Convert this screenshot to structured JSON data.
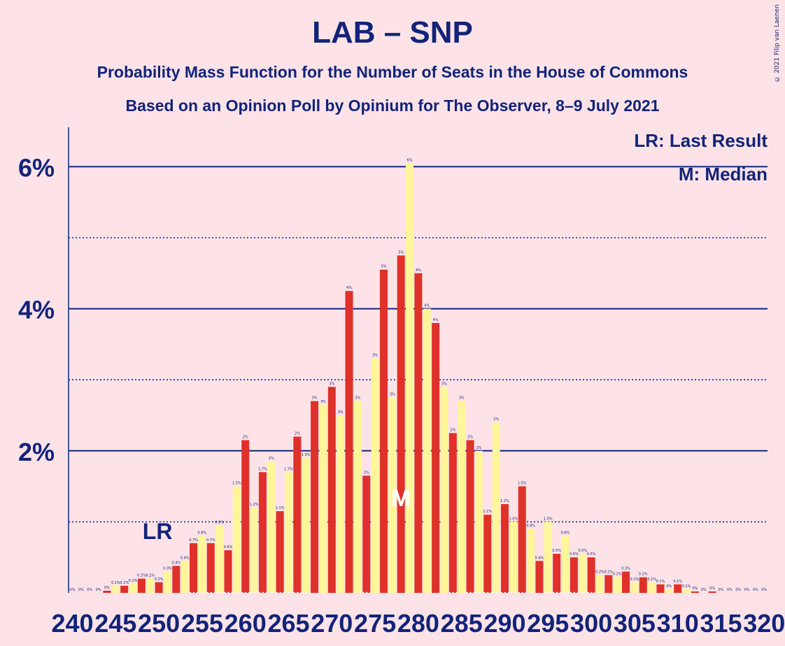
{
  "header": {
    "title": "LAB – SNP",
    "subtitle": "Probability Mass Function for the Number of Seats in the House of Commons",
    "subtitle2": "Based on an Opinion Poll by Opinium for The Observer, 8–9 July 2021",
    "copyright": "© 2021 Filip van Laenen"
  },
  "legend": {
    "last_result": "LR: Last Result",
    "median": "M: Median"
  },
  "markers": {
    "last_result_label": "LR",
    "last_result_seat": 250,
    "median_label": "M",
    "median_seat": 278
  },
  "colors": {
    "background": "#fde3e7",
    "navy": "#12237a",
    "red": "#e0302a",
    "yellow": "#fff59a",
    "white": "#ffffff"
  },
  "chart_data": {
    "type": "bar",
    "x_start": 240,
    "x_end": 320,
    "x_tick_labels": [
      "240",
      "245",
      "250",
      "255",
      "260",
      "265",
      "270",
      "275",
      "280",
      "285",
      "290",
      "295",
      "300",
      "305",
      "310",
      "315",
      "320"
    ],
    "y_tick_labels": [
      "2%",
      "4%",
      "6%"
    ],
    "ylim": [
      0,
      6.5
    ],
    "y_unit": "%",
    "values": [
      0,
      0,
      0,
      0,
      0.03,
      0.1,
      0.1,
      0.13,
      0.2,
      0.2,
      0.15,
      0.3,
      0.38,
      0.45,
      0.7,
      0.8,
      0.7,
      0.95,
      0.6,
      1.5,
      2.15,
      1.2,
      1.7,
      1.85,
      1.15,
      1.7,
      2.2,
      1.9,
      2.7,
      2.65,
      2.9,
      2.5,
      4.25,
      2.7,
      1.65,
      3.3,
      4.55,
      2.75,
      4.75,
      6.05,
      4.5,
      4.0,
      3.8,
      2.9,
      2.25,
      2.7,
      2.15,
      2.0,
      1.1,
      2.4,
      1.25,
      1.0,
      1.5,
      0.9,
      0.45,
      1.0,
      0.55,
      0.8,
      0.5,
      0.55,
      0.5,
      0.25,
      0.25,
      0.22,
      0.3,
      0.15,
      0.22,
      0.15,
      0.12,
      0.05,
      0.12,
      0.05,
      0.02,
      0,
      0.02,
      0,
      0,
      0,
      0,
      0,
      0
    ],
    "bar_labels": [
      "0%",
      "0%",
      "0%",
      "0%",
      "0%",
      "0.1%",
      "0.1%",
      "0.1%",
      "0.2%",
      "0.2%",
      "0.2%",
      "0.3%",
      "0.4%",
      "0.4%",
      "0.7%",
      "0.8%",
      "0.7%",
      "0.9%",
      "0.6%",
      "1.5%",
      "2%",
      "1.2%",
      "1.7%",
      "2%",
      "1.1%",
      "1.7%",
      "2%",
      "1.9%",
      "3%",
      "3%",
      "3%",
      "3%",
      "4%",
      "3%",
      "2%",
      "3%",
      "5%",
      "3%",
      "5%",
      "6%",
      "4%",
      "4%",
      "4%",
      "3%",
      "2%",
      "3%",
      "2%",
      "2%",
      "1.1%",
      "2%",
      "1.2%",
      "1.0%",
      "1.5%",
      "0.9%",
      "0.4%",
      "1.0%",
      "0.5%",
      "0.8%",
      "0.5%",
      "0.5%",
      "0.5%",
      "0.2%",
      "0.2%",
      "0.2%",
      "0.3%",
      "0.1%",
      "0.2%",
      "0.1%",
      "0.1%",
      "0%",
      "0.1%",
      "0.1%",
      "0%",
      "0%",
      "0%",
      "0%",
      "0%",
      "0%",
      "0%",
      "0%",
      "0%"
    ]
  }
}
